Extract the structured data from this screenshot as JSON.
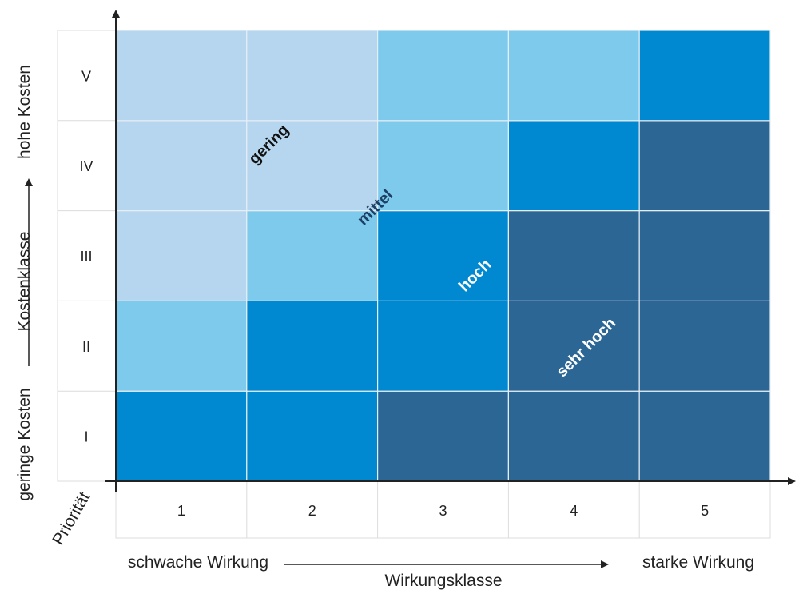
{
  "chart_data": {
    "type": "heatmap",
    "x_axis": {
      "label": "Wirkungsklasse",
      "low_label": "schwache Wirkung",
      "high_label": "starke Wirkung",
      "categories": [
        "1",
        "2",
        "3",
        "4",
        "5"
      ]
    },
    "y_axis": {
      "label": "Kostenklasse",
      "low_label": "geringe Kosten",
      "high_label": "hohe Kosten",
      "categories": [
        "I",
        "II",
        "III",
        "IV",
        "V"
      ]
    },
    "corner_label": "Priorität",
    "levels": [
      "gering",
      "mittel",
      "hoch",
      "sehr hoch"
    ],
    "level_colors": {
      "gering": "#b6d5ee",
      "mittel": "#7dcaed",
      "hoch": "#0089d0",
      "sehr hoch": "#2c6694"
    },
    "grid": [
      [
        "hoch",
        "hoch",
        "sehr hoch",
        "sehr hoch",
        "sehr hoch"
      ],
      [
        "mittel",
        "hoch",
        "hoch",
        "sehr hoch",
        "sehr hoch"
      ],
      [
        "gering",
        "mittel",
        "hoch",
        "sehr hoch",
        "sehr hoch"
      ],
      [
        "gering",
        "gering",
        "mittel",
        "hoch",
        "sehr hoch"
      ],
      [
        "gering",
        "gering",
        "mittel",
        "mittel",
        "hoch"
      ]
    ],
    "zone_labels": [
      {
        "text": "gering",
        "color": "#111111"
      },
      {
        "text": "mittel",
        "color": "#1c3f63"
      },
      {
        "text": "hoch",
        "color": "#ffffff"
      },
      {
        "text": "sehr hoch",
        "color": "#ffffff"
      }
    ]
  }
}
